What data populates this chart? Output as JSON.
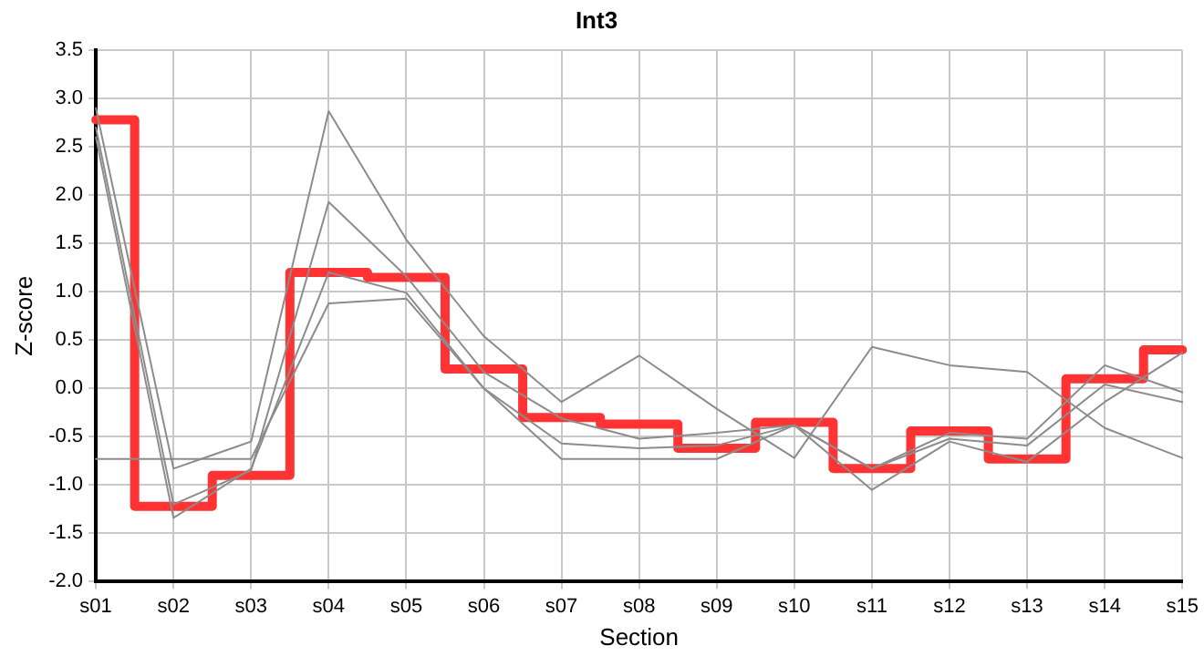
{
  "chart_data": {
    "type": "line",
    "title": "Int3",
    "xlabel": "Section",
    "ylabel": "Z-score",
    "categories": [
      "s01",
      "s02",
      "s03",
      "s04",
      "s05",
      "s06",
      "s07",
      "s08",
      "s09",
      "s10",
      "s11",
      "s12",
      "s13",
      "s14",
      "s15"
    ],
    "ylim": [
      -2.0,
      3.5
    ],
    "yticks": [
      {
        "value": -2,
        "label": "-2.0"
      },
      -1.5,
      {
        "value": -1,
        "label": "-1.0"
      },
      -0.5,
      {
        "value": 0,
        "label": "0.0"
      },
      0.5,
      {
        "value": 1,
        "label": "1.0"
      },
      1.5,
      {
        "value": 2,
        "label": "2.0"
      },
      2.5,
      {
        "value": 3,
        "label": "3.0"
      },
      3.5
    ],
    "grid": true,
    "legend": false,
    "marker": "none",
    "series": [
      {
        "type": "line",
        "color": "#8c8c8c",
        "values": [
          2.9,
          -0.83,
          -0.55,
          2.87,
          1.54,
          0.54,
          -0.14,
          0.34,
          -0.21,
          -0.72,
          0.43,
          0.24,
          0.17,
          -0.41,
          -0.72
        ]
      },
      {
        "type": "line",
        "color": "#8c8c8c",
        "values": [
          2.7,
          -1.2,
          -0.85,
          1.93,
          1.16,
          0.17,
          -0.31,
          -0.52,
          -0.46,
          -0.38,
          -0.83,
          -0.46,
          -0.52,
          0.24,
          -0.04
        ]
      },
      {
        "type": "line",
        "color": "#8c8c8c",
        "values": [
          2.6,
          -1.34,
          -0.83,
          1.2,
          0.99,
          0,
          -0.57,
          -0.62,
          -0.59,
          -0.38,
          -0.83,
          -0.52,
          -0.59,
          0.04,
          -0.14
        ]
      },
      {
        "type": "line",
        "color": "#8c8c8c",
        "values": [
          -0.73,
          -0.73,
          -0.73,
          0.88,
          0.93,
          0,
          -0.73,
          -0.73,
          -0.73,
          -0.38,
          -1.05,
          -0.55,
          -0.76,
          -0.14,
          0.37
        ]
      },
      {
        "type": "step",
        "color": "#ff3333",
        "values": [
          2.78,
          -1.22,
          -0.9,
          1.2,
          1.15,
          0.2,
          -0.3,
          -0.37,
          -0.62,
          -0.35,
          -0.83,
          -0.44,
          -0.73,
          0.1,
          0.4
        ]
      }
    ]
  }
}
